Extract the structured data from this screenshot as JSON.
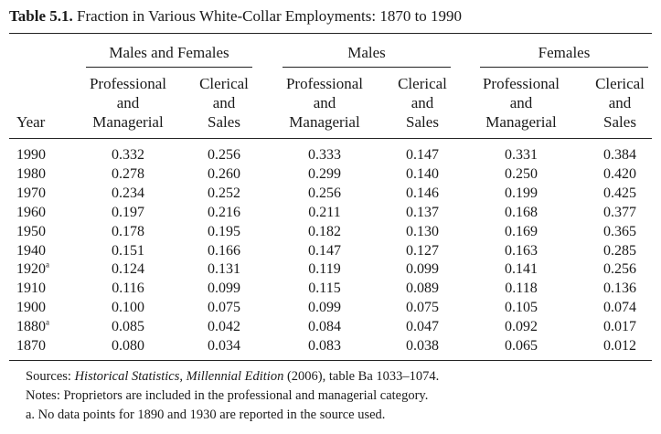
{
  "title": {
    "label": "Table 5.1.",
    "text": "Fraction in Various White-Collar Employments: 1870 to 1990"
  },
  "groups": [
    "Males and Females",
    "Males",
    "Females"
  ],
  "subheaders": {
    "year": "Year",
    "prof": [
      "Professional",
      "and",
      "Managerial"
    ],
    "cler": [
      "Clerical",
      "and",
      "Sales"
    ]
  },
  "rows": [
    {
      "year": "1990",
      "sup": "",
      "values": [
        "0.332",
        "0.256",
        "0.333",
        "0.147",
        "0.331",
        "0.384"
      ]
    },
    {
      "year": "1980",
      "sup": "",
      "values": [
        "0.278",
        "0.260",
        "0.299",
        "0.140",
        "0.250",
        "0.420"
      ]
    },
    {
      "year": "1970",
      "sup": "",
      "values": [
        "0.234",
        "0.252",
        "0.256",
        "0.146",
        "0.199",
        "0.425"
      ]
    },
    {
      "year": "1960",
      "sup": "",
      "values": [
        "0.197",
        "0.216",
        "0.211",
        "0.137",
        "0.168",
        "0.377"
      ]
    },
    {
      "year": "1950",
      "sup": "",
      "values": [
        "0.178",
        "0.195",
        "0.182",
        "0.130",
        "0.169",
        "0.365"
      ]
    },
    {
      "year": "1940",
      "sup": "",
      "values": [
        "0.151",
        "0.166",
        "0.147",
        "0.127",
        "0.163",
        "0.285"
      ]
    },
    {
      "year": "1920",
      "sup": "a",
      "values": [
        "0.124",
        "0.131",
        "0.119",
        "0.099",
        "0.141",
        "0.256"
      ]
    },
    {
      "year": "1910",
      "sup": "",
      "values": [
        "0.116",
        "0.099",
        "0.115",
        "0.089",
        "0.118",
        "0.136"
      ]
    },
    {
      "year": "1900",
      "sup": "",
      "values": [
        "0.100",
        "0.075",
        "0.099",
        "0.075",
        "0.105",
        "0.074"
      ]
    },
    {
      "year": "1880",
      "sup": "a",
      "values": [
        "0.085",
        "0.042",
        "0.084",
        "0.047",
        "0.092",
        "0.017"
      ]
    },
    {
      "year": "1870",
      "sup": "",
      "values": [
        "0.080",
        "0.034",
        "0.083",
        "0.038",
        "0.065",
        "0.012"
      ]
    }
  ],
  "notes": {
    "sources_prefix": "Sources: ",
    "sources_italic": "Historical Statistics, Millennial Edition",
    "sources_suffix": " (2006), table Ba 1033–1074.",
    "notes_line": "Notes: Proprietors are included in the professional and managerial category.",
    "footnote_a": "a. No data points for 1890 and 1930 are reported in the source used."
  }
}
